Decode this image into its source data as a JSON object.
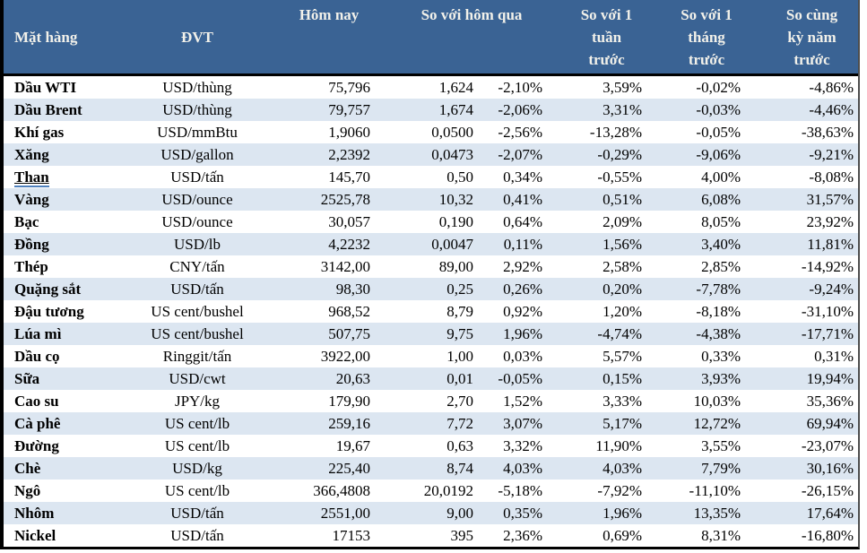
{
  "colors": {
    "header_bg": "#3A6394",
    "header_text": "#F2F1EA",
    "row_stripe": "#DCE6F1",
    "border": "#000000",
    "link_underline": "#4F81BD"
  },
  "table": {
    "header": {
      "mat_hang": "Mặt hàng",
      "dvt": "ĐVT",
      "hom_nay": "Hôm nay",
      "so_voi_hom_qua": "So với hôm qua",
      "so_voi_1_tuan_truoc": "So với 1\ntuần\ntrước",
      "so_voi_1_thang_truoc": "So với 1\ntháng\ntrước",
      "so_cung_ky_nam_truoc": "So cùng\nkỳ năm\ntrước"
    },
    "rows": [
      {
        "name": "Dầu WTI",
        "unit": "USD/thùng",
        "today": "75,796",
        "change_abs": "1,624",
        "change_pct": "-2,10%",
        "week": "3,59%",
        "month": "-0,02%",
        "year": "-4,86%",
        "underlined": false
      },
      {
        "name": "Dầu Brent",
        "unit": "USD/thùng",
        "today": "79,757",
        "change_abs": "1,674",
        "change_pct": "-2,06%",
        "week": "3,31%",
        "month": "-0,03%",
        "year": "-4,46%",
        "underlined": false
      },
      {
        "name": "Khí gas",
        "unit": "USD/mmBtu",
        "today": "1,9060",
        "change_abs": "0,0500",
        "change_pct": "-2,56%",
        "week": "-13,28%",
        "month": "-0,05%",
        "year": "-38,63%",
        "underlined": false
      },
      {
        "name": "Xăng",
        "unit": "USD/gallon",
        "today": "2,2392",
        "change_abs": "0,0473",
        "change_pct": "-2,07%",
        "week": "-0,29%",
        "month": "-9,06%",
        "year": "-9,21%",
        "underlined": false
      },
      {
        "name": "Than",
        "unit": "USD/tấn",
        "today": "145,70",
        "change_abs": "0,50",
        "change_pct": "0,34%",
        "week": "-0,55%",
        "month": "4,00%",
        "year": "-8,08%",
        "underlined": true
      },
      {
        "name": "Vàng",
        "unit": "USD/ounce",
        "today": "2525,78",
        "change_abs": "10,32",
        "change_pct": "0,41%",
        "week": "0,51%",
        "month": "6,08%",
        "year": "31,57%",
        "underlined": false
      },
      {
        "name": "Bạc",
        "unit": "USD/ounce",
        "today": "30,057",
        "change_abs": "0,190",
        "change_pct": "0,64%",
        "week": "2,09%",
        "month": "8,05%",
        "year": "23,92%",
        "underlined": false
      },
      {
        "name": "Đồng",
        "unit": "USD/lb",
        "today": "4,2232",
        "change_abs": "0,0047",
        "change_pct": "0,11%",
        "week": "1,56%",
        "month": "3,40%",
        "year": "11,81%",
        "underlined": false
      },
      {
        "name": "Thép",
        "unit": "CNY/tấn",
        "today": "3142,00",
        "change_abs": "89,00",
        "change_pct": "2,92%",
        "week": "2,58%",
        "month": "2,85%",
        "year": "-14,92%",
        "underlined": false
      },
      {
        "name": "Quặng sắt",
        "unit": "USD/tấn",
        "today": "98,30",
        "change_abs": "0,25",
        "change_pct": "0,26%",
        "week": "0,20%",
        "month": "-7,78%",
        "year": "-9,24%",
        "underlined": false
      },
      {
        "name": "Đậu tương",
        "unit": "US cent/bushel",
        "today": "968,52",
        "change_abs": "8,79",
        "change_pct": "0,92%",
        "week": "1,20%",
        "month": "-8,18%",
        "year": "-31,10%",
        "underlined": false
      },
      {
        "name": "Lúa mì",
        "unit": "US cent/bushel",
        "today": "507,75",
        "change_abs": "9,75",
        "change_pct": "1,96%",
        "week": "-4,74%",
        "month": "-4,38%",
        "year": "-17,71%",
        "underlined": false
      },
      {
        "name": "Dầu cọ",
        "unit": "Ringgit/tấn",
        "today": "3922,00",
        "change_abs": "1,00",
        "change_pct": "0,03%",
        "week": "5,57%",
        "month": "0,33%",
        "year": "0,31%",
        "underlined": false
      },
      {
        "name": "Sữa",
        "unit": "USD/cwt",
        "today": "20,63",
        "change_abs": "0,01",
        "change_pct": "-0,05%",
        "week": "0,15%",
        "month": "3,93%",
        "year": "19,94%",
        "underlined": false
      },
      {
        "name": "Cao su",
        "unit": "JPY/kg",
        "today": "179,90",
        "change_abs": "2,70",
        "change_pct": "1,52%",
        "week": "3,33%",
        "month": "10,03%",
        "year": "35,36%",
        "underlined": false
      },
      {
        "name": "Cà phê",
        "unit": "US cent/lb",
        "today": "259,16",
        "change_abs": "7,72",
        "change_pct": "3,07%",
        "week": "5,17%",
        "month": "12,72%",
        "year": "69,94%",
        "underlined": false
      },
      {
        "name": "Đường",
        "unit": "US cent/lb",
        "today": "19,67",
        "change_abs": "0,63",
        "change_pct": "3,32%",
        "week": "11,90%",
        "month": "3,55%",
        "year": "-23,07%",
        "underlined": false
      },
      {
        "name": "Chè",
        "unit": "USD/kg",
        "today": "225,40",
        "change_abs": "8,74",
        "change_pct": "4,03%",
        "week": "4,03%",
        "month": "7,79%",
        "year": "30,16%",
        "underlined": false
      },
      {
        "name": "Ngô",
        "unit": "US cent/lb",
        "today": "366,4808",
        "change_abs": "20,0192",
        "change_pct": "-5,18%",
        "week": "-7,92%",
        "month": "-11,10%",
        "year": "-26,15%",
        "underlined": false
      },
      {
        "name": "Nhôm",
        "unit": "USD/tấn",
        "today": "2551,00",
        "change_abs": "9,00",
        "change_pct": "0,35%",
        "week": "1,96%",
        "month": "13,35%",
        "year": "17,64%",
        "underlined": false
      },
      {
        "name": "Nickel",
        "unit": "USD/tấn",
        "today": "17153",
        "change_abs": "395",
        "change_pct": "2,36%",
        "week": "0,69%",
        "month": "8,31%",
        "year": "-16,80%",
        "underlined": false
      }
    ]
  }
}
